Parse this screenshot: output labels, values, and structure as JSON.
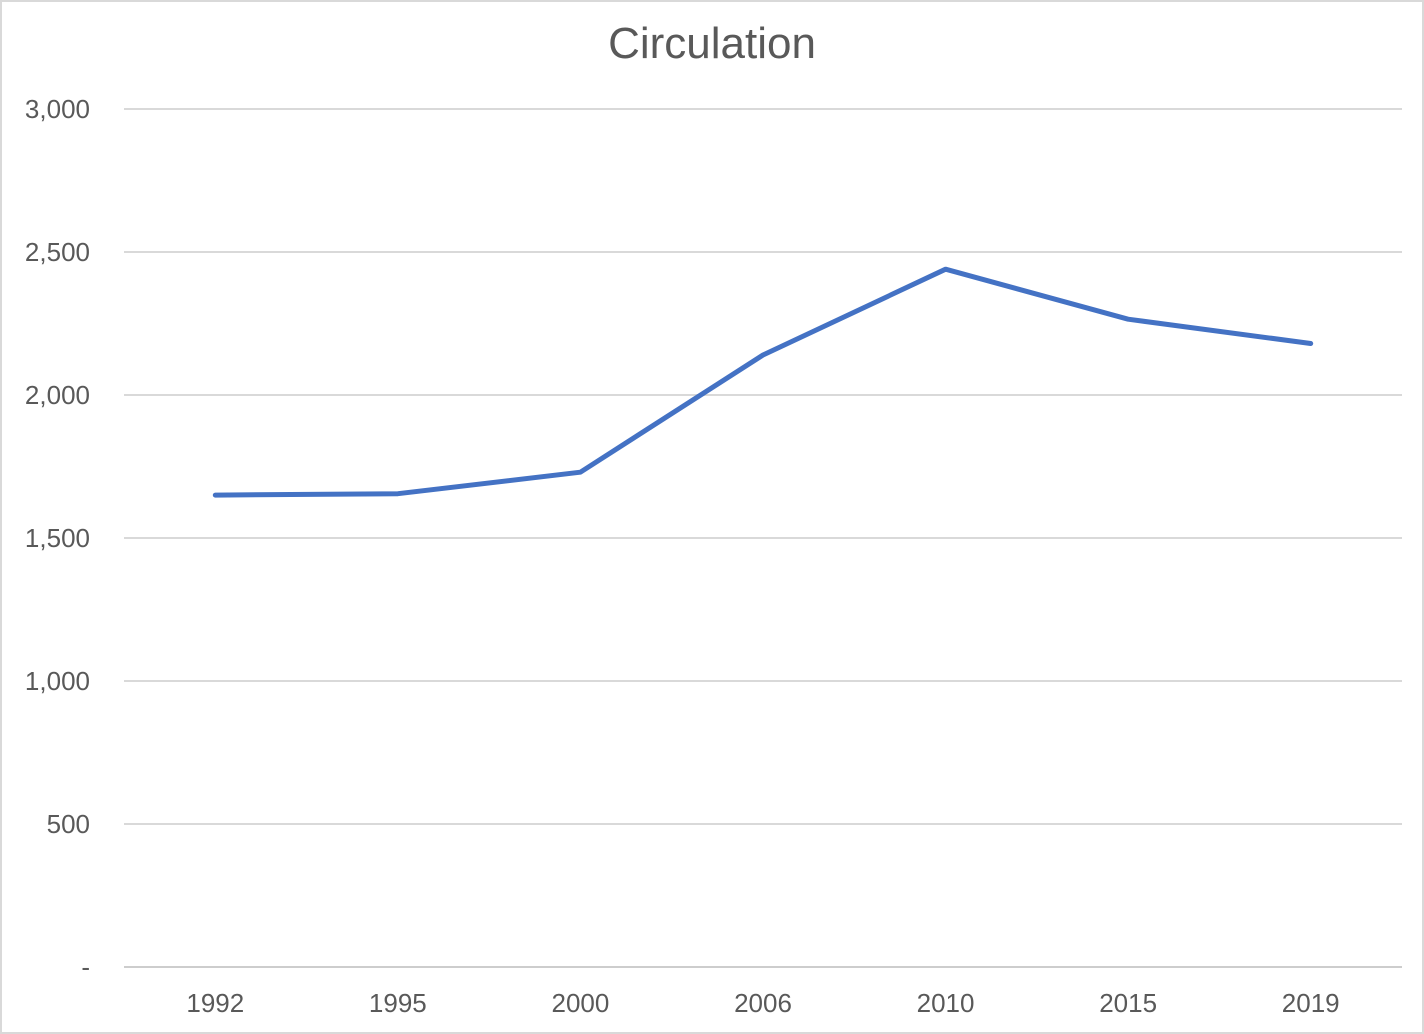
{
  "window": {
    "background": "#FFFFFF",
    "border_color": "#D9D9D9"
  },
  "chart_data": {
    "type": "line",
    "title": "Circulation",
    "categories": [
      "1992",
      "1995",
      "2000",
      "2006",
      "2010",
      "2015",
      "2019"
    ],
    "series": [
      {
        "name": "Circulation",
        "color": "#4472C4",
        "values": [
          1650,
          1655,
          1730,
          2140,
          2440,
          2265,
          2180
        ]
      }
    ],
    "xlabel": "",
    "ylabel": "",
    "ylim": [
      0,
      3000
    ],
    "ytick_interval": 500,
    "ytick_labels": [
      "-",
      "500",
      "1,000",
      "1,500",
      "2,000",
      "2,500",
      "3,000"
    ],
    "grid": true,
    "legend": "none",
    "gridline_color": "#D9D9D9",
    "axis_line_color": "#CDCDCD",
    "tick_label_color": "#595959",
    "title_color": "#595959"
  }
}
